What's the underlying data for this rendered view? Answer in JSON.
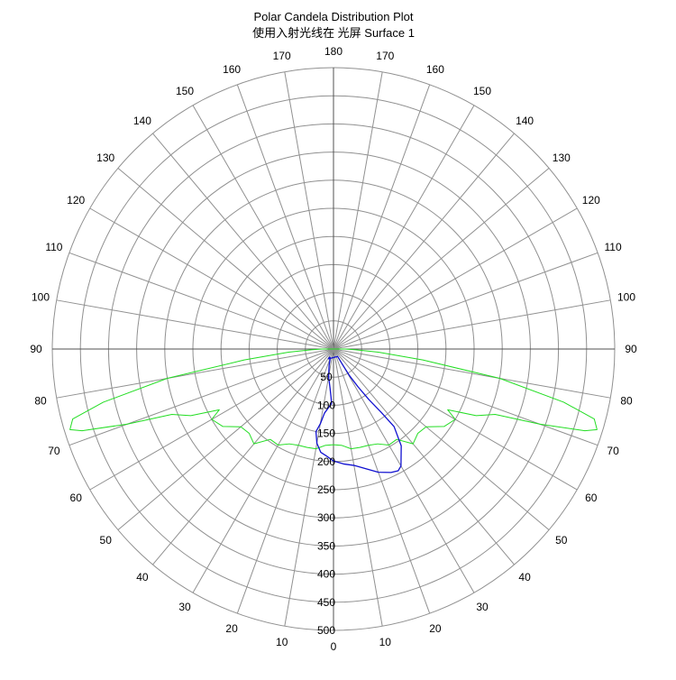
{
  "chart_data": {
    "type": "polar",
    "title": "Polar Candela Distribution Plot",
    "subtitle": "使用入射光线在 光屏 Surface 1",
    "radial_ticks": [
      "50",
      "100",
      "150",
      "200",
      "250",
      "300",
      "350",
      "400",
      "450",
      "500"
    ],
    "rmax": 500,
    "angle_labels_left": [
      "0",
      "10",
      "20",
      "30",
      "40",
      "50",
      "60",
      "70",
      "80",
      "90",
      "100",
      "110",
      "120",
      "130",
      "140",
      "150",
      "160",
      "170",
      "180"
    ],
    "angle_labels_right": [
      "",
      "10",
      "20",
      "30",
      "40",
      "50",
      "60",
      "70",
      "80",
      "90",
      "100",
      "110",
      "120",
      "130",
      "140",
      "150",
      "160",
      "170",
      ""
    ],
    "grid": true,
    "colors": {
      "grid": "#909090",
      "axis": "#505050",
      "green": "#22dd22",
      "blue": "#1010d0"
    },
    "series": [
      {
        "color": "#22dd22",
        "line": "solid",
        "points": [
          [
            0,
            170
          ],
          [
            5,
            172
          ],
          [
            10,
            180
          ],
          [
            15,
            181
          ],
          [
            20,
            182
          ],
          [
            25,
            186
          ],
          [
            30,
            197
          ],
          [
            35,
            196
          ],
          [
            40,
            220
          ],
          [
            45,
            212
          ],
          [
            50,
            215
          ],
          [
            55,
            240
          ],
          [
            60,
            250
          ],
          [
            62,
            230
          ],
          [
            65,
            280
          ],
          [
            68,
            310
          ],
          [
            70,
            390
          ],
          [
            72,
            470
          ],
          [
            73,
            490
          ],
          [
            75,
            480
          ],
          [
            77,
            420
          ],
          [
            80,
            300
          ],
          [
            83,
            160
          ],
          [
            86,
            80
          ],
          [
            88,
            40
          ],
          [
            90,
            20
          ],
          [
            -90,
            20
          ],
          [
            -88,
            40
          ],
          [
            -86,
            80
          ],
          [
            -83,
            160
          ],
          [
            -80,
            300
          ],
          [
            -77,
            420
          ],
          [
            -75,
            480
          ],
          [
            -73,
            490
          ],
          [
            -72,
            470
          ],
          [
            -70,
            390
          ],
          [
            -68,
            310
          ],
          [
            -65,
            280
          ],
          [
            -62,
            230
          ],
          [
            -60,
            250
          ],
          [
            -55,
            240
          ],
          [
            -50,
            215
          ],
          [
            -45,
            212
          ],
          [
            -40,
            220
          ],
          [
            -35,
            196
          ],
          [
            -30,
            197
          ],
          [
            -25,
            186
          ],
          [
            -20,
            182
          ],
          [
            -15,
            181
          ],
          [
            -10,
            180
          ],
          [
            -5,
            172
          ],
          [
            0,
            170
          ]
        ]
      },
      {
        "color": "#1010d0",
        "line": "solid",
        "points": [
          [
            -28,
            20
          ],
          [
            -25,
            16
          ],
          [
            -20,
            17
          ],
          [
            -15,
            30
          ],
          [
            -10,
            50
          ],
          [
            -5,
            70
          ],
          [
            -3,
            85
          ],
          [
            -2,
            97
          ],
          [
            -5,
            105
          ],
          [
            -8,
            115
          ],
          [
            -10,
            135
          ],
          [
            -12,
            150
          ],
          [
            -10,
            170
          ],
          [
            -7,
            185
          ],
          [
            -4,
            190
          ],
          [
            0,
            199
          ],
          [
            5,
            205
          ],
          [
            10,
            210
          ],
          [
            15,
            220
          ],
          [
            20,
            233
          ],
          [
            25,
            242
          ],
          [
            28,
            245
          ],
          [
            30,
            240
          ],
          [
            35,
            210
          ],
          [
            38,
            175
          ],
          [
            37,
            140
          ],
          [
            35,
            110
          ],
          [
            33,
            80
          ],
          [
            31,
            55
          ],
          [
            30,
            30
          ],
          [
            29,
            15
          ],
          [
            -28,
            20
          ]
        ]
      }
    ]
  }
}
